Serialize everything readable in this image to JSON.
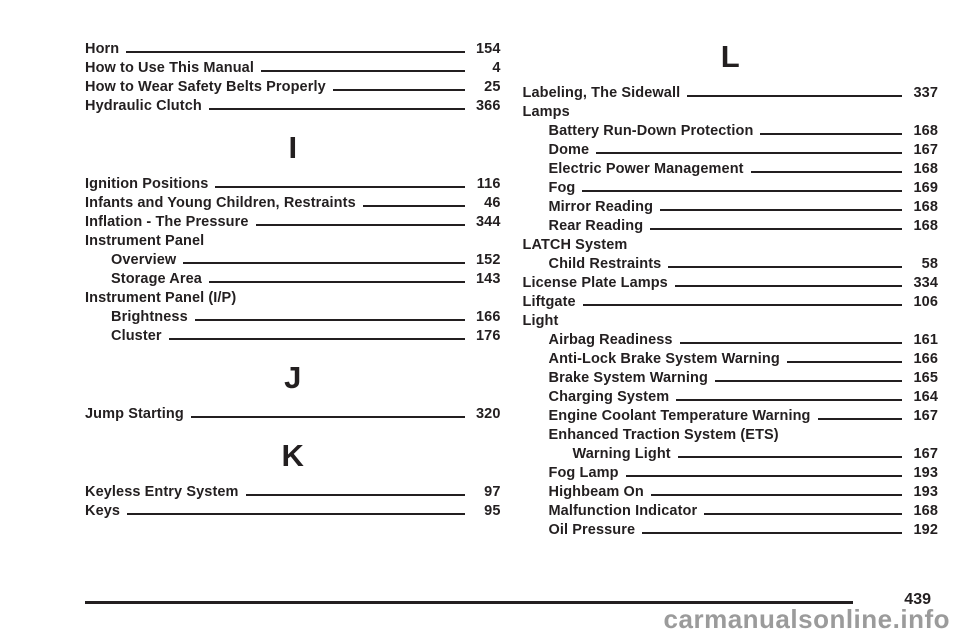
{
  "index": {
    "left_column": [
      {
        "t": "entry",
        "label": "Horn",
        "page": "154",
        "indent": 0
      },
      {
        "t": "entry",
        "label": "How to Use This Manual",
        "page": "4",
        "indent": 0
      },
      {
        "t": "entry",
        "label": "How to Wear Safety Belts Properly",
        "page": "25",
        "indent": 0
      },
      {
        "t": "entry",
        "label": "Hydraulic Clutch",
        "page": "366",
        "indent": 0
      },
      {
        "t": "letter",
        "label": "I"
      },
      {
        "t": "entry",
        "label": "Ignition Positions",
        "page": "116",
        "indent": 0
      },
      {
        "t": "entry",
        "label": "Infants and Young Children, Restraints",
        "page": "46",
        "indent": 0
      },
      {
        "t": "entry",
        "label": "Inflation - The Pressure",
        "page": "344",
        "indent": 0
      },
      {
        "t": "entry",
        "label": "Instrument Panel",
        "page": "",
        "indent": 0
      },
      {
        "t": "entry",
        "label": "Overview",
        "page": "152",
        "indent": 1
      },
      {
        "t": "entry",
        "label": "Storage Area",
        "page": "143",
        "indent": 1
      },
      {
        "t": "entry",
        "label": "Instrument Panel (I/P)",
        "page": "",
        "indent": 0
      },
      {
        "t": "entry",
        "label": "Brightness",
        "page": "166",
        "indent": 1
      },
      {
        "t": "entry",
        "label": "Cluster",
        "page": "176",
        "indent": 1
      },
      {
        "t": "letter",
        "label": "J"
      },
      {
        "t": "entry",
        "label": "Jump Starting",
        "page": "320",
        "indent": 0
      },
      {
        "t": "letter",
        "label": "K"
      },
      {
        "t": "entry",
        "label": "Keyless Entry System",
        "page": "97",
        "indent": 0
      },
      {
        "t": "entry",
        "label": "Keys",
        "page": "95",
        "indent": 0
      }
    ],
    "right_column": [
      {
        "t": "letter",
        "label": "L"
      },
      {
        "t": "entry",
        "label": "Labeling, The Sidewall",
        "page": "337",
        "indent": 0
      },
      {
        "t": "entry",
        "label": "Lamps",
        "page": "",
        "indent": 0
      },
      {
        "t": "entry",
        "label": "Battery Run-Down Protection",
        "page": "168",
        "indent": 1
      },
      {
        "t": "entry",
        "label": "Dome",
        "page": "167",
        "indent": 1
      },
      {
        "t": "entry",
        "label": "Electric Power Management",
        "page": "168",
        "indent": 1
      },
      {
        "t": "entry",
        "label": "Fog",
        "page": "169",
        "indent": 1
      },
      {
        "t": "entry",
        "label": "Mirror Reading",
        "page": "168",
        "indent": 1
      },
      {
        "t": "entry",
        "label": "Rear Reading",
        "page": "168",
        "indent": 1
      },
      {
        "t": "entry",
        "label": "LATCH System",
        "page": "",
        "indent": 0
      },
      {
        "t": "entry",
        "label": "Child Restraints",
        "page": "58",
        "indent": 1
      },
      {
        "t": "entry",
        "label": "License Plate Lamps",
        "page": "334",
        "indent": 0
      },
      {
        "t": "entry",
        "label": "Liftgate",
        "page": "106",
        "indent": 0
      },
      {
        "t": "entry",
        "label": "Light",
        "page": "",
        "indent": 0
      },
      {
        "t": "entry",
        "label": "Airbag Readiness",
        "page": "161",
        "indent": 1
      },
      {
        "t": "entry",
        "label": "Anti-Lock Brake System Warning",
        "page": "166",
        "indent": 1
      },
      {
        "t": "entry",
        "label": "Brake System Warning",
        "page": "165",
        "indent": 1
      },
      {
        "t": "entry",
        "label": "Charging System",
        "page": "164",
        "indent": 1
      },
      {
        "t": "entry",
        "label": "Engine Coolant Temperature Warning",
        "page": "167",
        "indent": 1
      },
      {
        "t": "entry",
        "label": "Enhanced Traction System (ETS)",
        "page": "",
        "indent": 1
      },
      {
        "t": "entry",
        "label": "Warning Light",
        "page": "167",
        "indent": 2
      },
      {
        "t": "entry",
        "label": "Fog Lamp",
        "page": "193",
        "indent": 1
      },
      {
        "t": "entry",
        "label": "Highbeam On",
        "page": "193",
        "indent": 1
      },
      {
        "t": "entry",
        "label": "Malfunction Indicator",
        "page": "168",
        "indent": 1
      },
      {
        "t": "entry",
        "label": "Oil Pressure",
        "page": "192",
        "indent": 1
      }
    ]
  },
  "footer": {
    "page_number": "439",
    "watermark": "carmanualsonline.info"
  },
  "colors": {
    "ink": "#231f20",
    "watermark_gray": "#9b9b9b"
  }
}
